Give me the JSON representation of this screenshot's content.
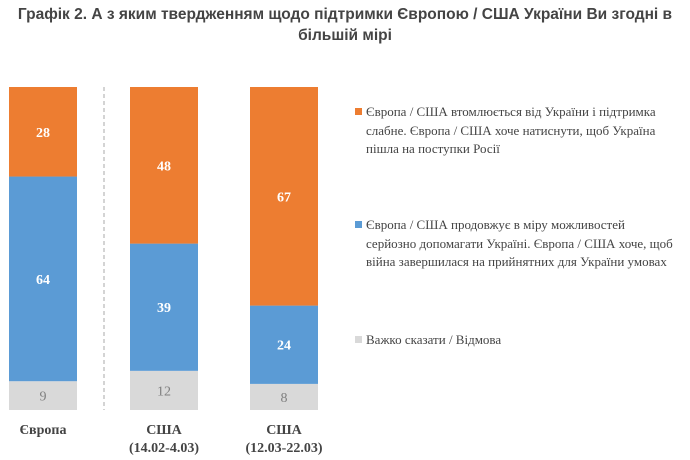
{
  "chart_data": {
    "type": "bar",
    "stacked": true,
    "title": "Графік 2. А з яким твердженням щодо підтримки Європою / США України Ви згодні в більшій мірі",
    "categories": [
      [
        "Європа"
      ],
      [
        "США",
        "(14.02-4.03)"
      ],
      [
        "США",
        "(12.03-22.03)"
      ]
    ],
    "series": [
      {
        "name": "Важко сказати / Відмова",
        "color": "#d9d9d9",
        "label_color": "#7f7f7f",
        "values": [
          9,
          12,
          8
        ]
      },
      {
        "name": "Європа / США продовжує в міру можливостей серйозно допомагати Україні. Європа / США хоче, щоб війна завершилася на прийнятних для України умовах",
        "color": "#5b9bd5",
        "label_color": "#ffffff",
        "values": [
          64,
          39,
          24
        ]
      },
      {
        "name": "Європа / США втомлюється від України і підтримка слабне. Європа / США хоче натиснути, щоб Україна пішла на поступки Росії",
        "color": "#ed7d31",
        "label_color": "#ffffff",
        "values": [
          28,
          48,
          67
        ]
      }
    ],
    "legend_placement": "right",
    "grid": false
  }
}
